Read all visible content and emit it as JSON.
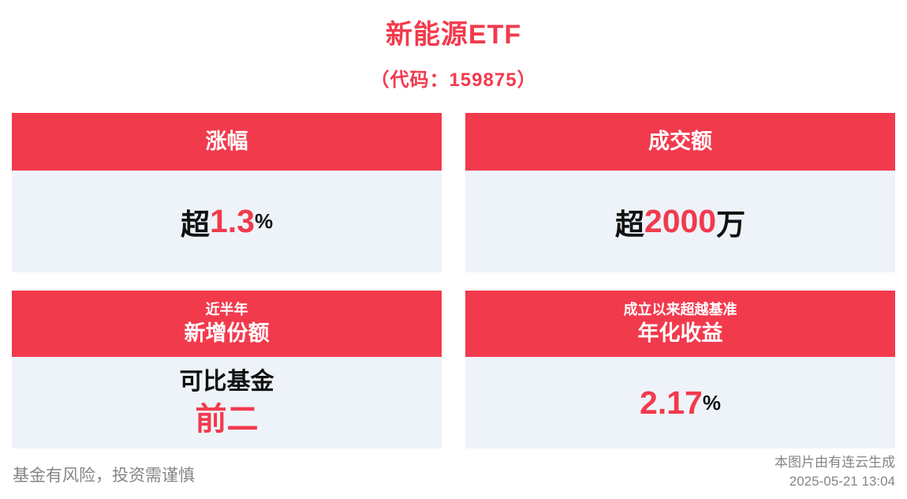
{
  "page": {
    "title": "新能源ETF",
    "subtitle": "（代码：159875）"
  },
  "cards": {
    "gain": {
      "header": "涨幅",
      "prefix": "超",
      "value": "1.3",
      "suffix": "%"
    },
    "turnover": {
      "header": "成交额",
      "prefix": "超",
      "value": "2000",
      "suffix": "万"
    },
    "shares": {
      "header_top": "近半年",
      "header": "新增份额",
      "line1": "可比基金",
      "line2": "前二"
    },
    "annualized": {
      "header_top": "成立以来超越基准",
      "header": "年化收益",
      "value": "2.17",
      "suffix": "%"
    }
  },
  "footer": {
    "disclaimer": "基金有风险，投资需谨慎",
    "credit": "本图片由有连云生成",
    "timestamp": "2025-05-21 13:04"
  },
  "colors": {
    "accent_red": "#f23a4d",
    "card_body_bg": "#eef3f9",
    "footer_gray": "#858585"
  }
}
